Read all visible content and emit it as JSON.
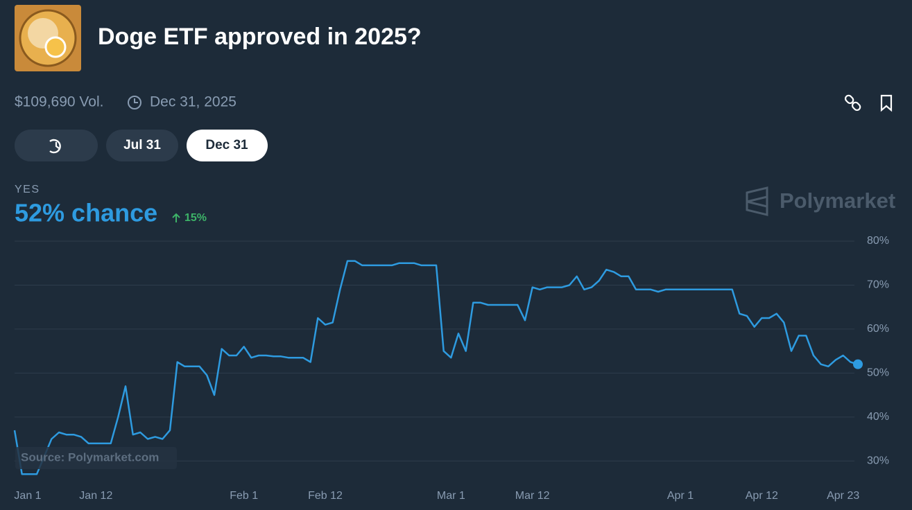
{
  "header": {
    "title": "Doge ETF approved in 2025?",
    "volume": "$109,690 Vol.",
    "end_date": "Dec 31, 2025",
    "buttons": [
      "Jul 31",
      "Dec 31"
    ],
    "outcome": "YES",
    "chance": "52% chance",
    "change": "15%",
    "brand": "Polymarket",
    "source": "Source: Polymarket.com"
  },
  "chart_data": {
    "type": "line",
    "categories": [
      "Jan 1",
      null,
      null,
      null,
      null,
      null,
      null,
      null,
      null,
      null,
      null,
      "Jan 12",
      null,
      null,
      null,
      null,
      null,
      null,
      null,
      null,
      null,
      null,
      null,
      null,
      null,
      null,
      null,
      null,
      null,
      null,
      null,
      "Feb 1",
      null,
      null,
      null,
      null,
      null,
      null,
      null,
      null,
      null,
      null,
      "Feb 12",
      null,
      null,
      null,
      null,
      null,
      null,
      null,
      null,
      null,
      null,
      null,
      null,
      null,
      null,
      null,
      null,
      "Mar 1",
      null,
      null,
      null,
      null,
      null,
      null,
      null,
      null,
      null,
      null,
      "Mar 12",
      null,
      null,
      null,
      null,
      null,
      null,
      null,
      null,
      null,
      null,
      null,
      null,
      null,
      null,
      null,
      null,
      null,
      null,
      null,
      "Apr 1",
      null,
      null,
      null,
      null,
      null,
      null,
      null,
      null,
      null,
      null,
      "Apr 12",
      null,
      null,
      null,
      null,
      null,
      null,
      null,
      null,
      null,
      null,
      "Apr 23",
      null,
      null
    ],
    "series": [
      {
        "name": "YES",
        "color": "#2e9be0",
        "values": [
          37,
          27,
          27,
          27,
          31,
          35,
          36.5,
          36,
          36,
          35.5,
          34,
          34,
          34,
          34,
          40,
          47,
          36,
          36.5,
          35,
          35.5,
          35,
          37,
          52.5,
          51.5,
          51.5,
          51.5,
          49.5,
          45,
          55.5,
          54,
          54,
          56,
          53.5,
          54,
          54,
          53.8,
          53.8,
          53.5,
          53.5,
          53.5,
          52.5,
          62.5,
          61,
          61.5,
          69,
          75.5,
          75.5,
          74.5,
          74.5,
          74.5,
          74.5,
          74.5,
          75,
          75,
          75,
          74.5,
          74.5,
          74.5,
          55,
          53.5,
          59,
          55,
          66,
          66,
          65.5,
          65.5,
          65.5,
          65.5,
          65.5,
          62,
          69.5,
          69,
          69.5,
          69.5,
          69.5,
          70,
          72,
          69,
          69.5,
          71,
          73.5,
          73,
          72,
          72,
          69,
          69,
          69,
          68.5,
          69,
          69,
          69,
          69,
          69,
          69,
          69,
          69,
          69,
          69,
          63.5,
          63,
          60.5,
          62.5,
          62.5,
          63.5,
          61.5,
          55,
          58.5,
          58.5,
          54,
          52,
          51.5,
          53,
          54,
          52.5,
          52
        ]
      }
    ],
    "ylim": [
      25,
      80
    ],
    "yticks": [
      {
        "value": 30,
        "label": "30%"
      },
      {
        "value": 40,
        "label": "40%"
      },
      {
        "value": 50,
        "label": "50%"
      },
      {
        "value": 60,
        "label": "60%"
      },
      {
        "value": 70,
        "label": "70%"
      },
      {
        "value": 80,
        "label": "80%"
      }
    ],
    "grid": true
  }
}
